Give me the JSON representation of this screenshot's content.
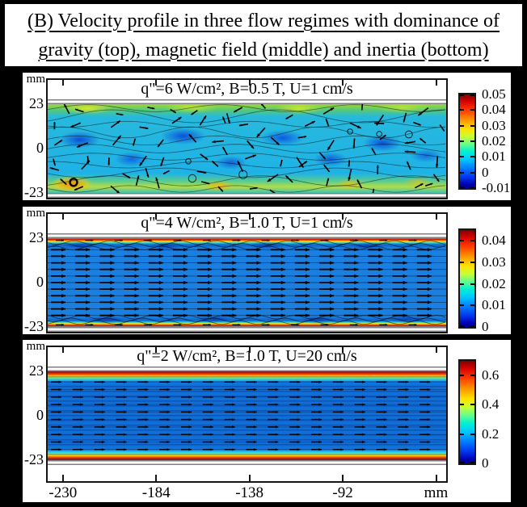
{
  "header": {
    "line1": "(B) Velocity profile in three flow regimes with dominance of",
    "line2": "gravity (top), magnetic field (middle) and inertia (bottom)"
  },
  "chart_data": {
    "type": "heatmap",
    "description": "Three vector-field velocity-magnitude maps (jet colormap) of liquid-metal duct flow, one per flow regime, each with its own colorbar in m/s.",
    "y_axis": {
      "unit": "mm",
      "ticks": [
        "23",
        "0",
        "-23"
      ],
      "range": [
        23,
        -23
      ]
    },
    "x_axis": {
      "unit": "mm",
      "range": [
        -237.5,
        -41
      ],
      "tick_values": [
        -230,
        -184,
        -138,
        -92,
        -46
      ],
      "tick_labels": [
        "-230",
        "-184",
        "-138",
        "-92",
        ""
      ]
    },
    "panels": [
      {
        "regime": "gravity dominated",
        "title": "q\"=6 W/cm², B=0.5 T, U=1 cm/s",
        "flow_style": "turbulent",
        "has_x_axis": false,
        "field_description": "irregular turbulent convection: wavy streamlines, vortices, arrows in all directions; yellow-green high-speed bands near both walls, cyan core with dark-blue low-speed patches, orange hot spots near bottom wall",
        "colorbar": {
          "min": -0.01,
          "max": 0.05,
          "ticks": [
            {
              "label": "0.05",
              "value": 0.05
            },
            {
              "label": "0.04",
              "value": 0.04
            },
            {
              "label": "0.03",
              "value": 0.03
            },
            {
              "label": "0.02",
              "value": 0.02
            },
            {
              "label": "0.01",
              "value": 0.01
            },
            {
              "label": "0",
              "value": 0
            },
            {
              "label": "-0.01",
              "value": -0.01
            }
          ]
        }
      },
      {
        "regime": "magnetic field dominated",
        "title": "q\"=4 W/cm², B=1.0 T, U=1 cm/s",
        "flow_style": "laminar-magnetic",
        "has_x_axis": false,
        "field_description": "magnetically damped flow: uniform blue core with straight rightward arrows, thin red/orange/yellow high-speed jets at both walls with small wavy structures beside them",
        "colorbar": {
          "min": 0,
          "max": 0.045,
          "ticks": [
            {
              "label": "0.04",
              "value": 0.04
            },
            {
              "label": "0.03",
              "value": 0.03
            },
            {
              "label": "0.02",
              "value": 0.02
            },
            {
              "label": "0.01",
              "value": 0.01
            },
            {
              "label": "0",
              "value": 0
            }
          ]
        }
      },
      {
        "regime": "inertia dominated",
        "title": "q\"=2 W/cm², B=1.0 T, U=20 cm/s",
        "flow_style": "laminar-inertia",
        "has_x_axis": true,
        "field_description": "inertia-dominated slug flow: flat dark-blue core with dense straight rightward arrows and horizontal streamlines, thin rainbow boundary layers (red at walls through orange-yellow-green-cyan) at top and bottom",
        "colorbar": {
          "min": 0,
          "max": 0.7,
          "ticks": [
            {
              "label": "0.6",
              "value": 0.6
            },
            {
              "label": "0.4",
              "value": 0.4
            },
            {
              "label": "0.2",
              "value": 0.2
            },
            {
              "label": "0",
              "value": 0
            }
          ]
        }
      }
    ]
  }
}
